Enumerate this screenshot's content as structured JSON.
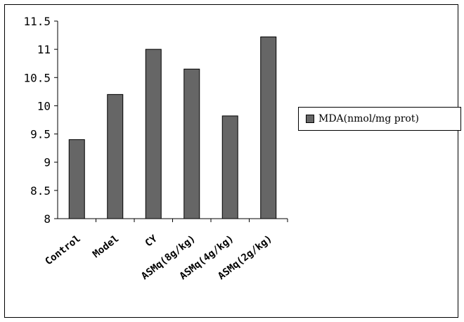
{
  "chart_data": {
    "type": "bar",
    "categories": [
      "Control",
      "Model",
      "CY",
      "ASMq(8g/kg)",
      "ASMq(4g/kg)",
      "ASMq(2g/kg)"
    ],
    "series": [
      {
        "name": "MDA(nmol/mg prot)",
        "values": [
          9.4,
          10.2,
          11.0,
          10.65,
          9.82,
          11.22
        ],
        "color": "#666666"
      }
    ],
    "ylim": [
      8,
      11.5
    ],
    "yticks": [
      "8",
      "8.5",
      "9",
      "9.5",
      "10",
      "10.5",
      "11",
      "11.5"
    ],
    "grid": false,
    "legend": "right"
  }
}
